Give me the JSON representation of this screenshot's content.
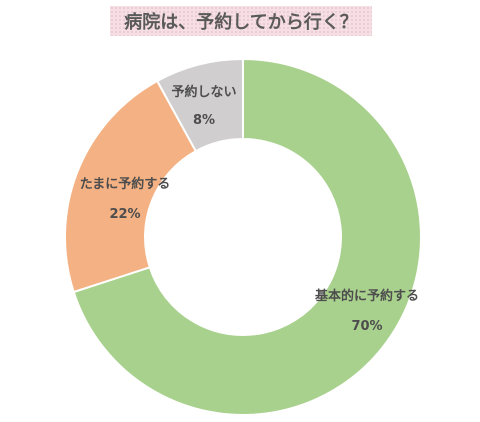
{
  "chart_data": {
    "type": "pie",
    "donut": true,
    "title": "病院は、予約してから行く？",
    "slices": [
      {
        "label": "基本的に予約する",
        "value": 70,
        "value_label": "70%",
        "color": "#a9d18e"
      },
      {
        "label": "たまに予約する",
        "value": 22,
        "value_label": "22%",
        "color": "#f4b183"
      },
      {
        "label": "予約しない",
        "value": 8,
        "value_label": "8%",
        "color": "#d0cece"
      }
    ],
    "start": "12 o'clock",
    "direction": "clockwise",
    "legend": "none"
  }
}
